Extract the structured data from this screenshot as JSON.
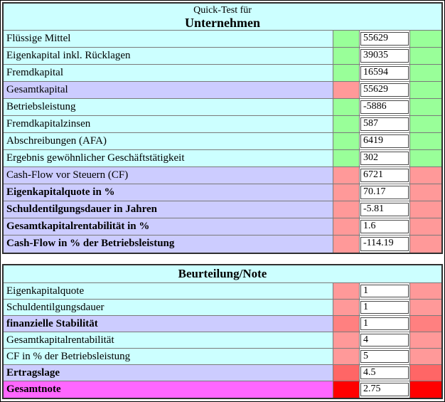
{
  "colors": {
    "header_bg": "#CCFFFF",
    "cyan": "#CCFFFF",
    "lavender": "#CCCCFF",
    "green": "#99FF99",
    "salmon": "#FF9999",
    "red_medium": "#FF8080",
    "red_dark": "#FF6666",
    "red_bright": "#FF0000",
    "magenta": "#FF66FF"
  },
  "quick_test_table": {
    "header_line1": "Quick-Test für",
    "header_line2": "Unternehmen",
    "rows": [
      {
        "label": "Flüssige Mittel",
        "value": "55629",
        "bold": false,
        "label_bg": "#CCFFFF",
        "left_bg": "#99FF99",
        "right_bg": "#99FF99"
      },
      {
        "label": "Eigenkapital inkl. Rücklagen",
        "value": "39035",
        "bold": false,
        "label_bg": "#CCFFFF",
        "left_bg": "#99FF99",
        "right_bg": "#99FF99"
      },
      {
        "label": "Fremdkapital",
        "value": "16594",
        "bold": false,
        "label_bg": "#CCFFFF",
        "left_bg": "#99FF99",
        "right_bg": "#99FF99"
      },
      {
        "label": "Gesamtkapital",
        "value": "55629",
        "bold": false,
        "label_bg": "#CCCCFF",
        "left_bg": "#FF9999",
        "right_bg": "#99FF99"
      },
      {
        "label": "Betriebsleistung",
        "value": "-5886",
        "bold": false,
        "label_bg": "#CCFFFF",
        "left_bg": "#99FF99",
        "right_bg": "#99FF99"
      },
      {
        "label": "Fremdkapitalzinsen",
        "value": "587",
        "bold": false,
        "label_bg": "#CCFFFF",
        "left_bg": "#99FF99",
        "right_bg": "#99FF99"
      },
      {
        "label": "Abschreibungen (AFA)",
        "value": "6419",
        "bold": false,
        "label_bg": "#CCFFFF",
        "left_bg": "#99FF99",
        "right_bg": "#99FF99"
      },
      {
        "label": "Ergebnis gewöhnlicher Geschäftstätigkeit",
        "value": "302",
        "bold": false,
        "label_bg": "#CCFFFF",
        "left_bg": "#99FF99",
        "right_bg": "#99FF99"
      },
      {
        "label": "Cash-Flow vor Steuern (CF)",
        "value": "6721",
        "bold": false,
        "label_bg": "#CCCCFF",
        "left_bg": "#FF9999",
        "right_bg": "#FF9999"
      },
      {
        "label": "Eigenkapitalquote in %",
        "value": "70.17",
        "bold": true,
        "label_bg": "#CCCCFF",
        "left_bg": "#FF9999",
        "right_bg": "#FF9999"
      },
      {
        "label": "Schuldentilgungsdauer in Jahren",
        "value": "-5.81",
        "bold": true,
        "label_bg": "#CCCCFF",
        "left_bg": "#FF9999",
        "right_bg": "#FF9999"
      },
      {
        "label": "Gesamtkapitalrentabilität in %",
        "value": "1.6",
        "bold": true,
        "label_bg": "#CCCCFF",
        "left_bg": "#FF9999",
        "right_bg": "#FF9999"
      },
      {
        "label": "Cash-Flow in % der Betriebsleistung",
        "value": "-114.19",
        "bold": true,
        "label_bg": "#CCCCFF",
        "left_bg": "#FF9999",
        "right_bg": "#FF9999"
      }
    ]
  },
  "rating_table": {
    "header": "Beurteilung/Note",
    "rows": [
      {
        "label": "Eigenkapitalquote",
        "value": "1",
        "bold": false,
        "label_bg": "#CCFFFF",
        "left_bg": "#FF9999",
        "right_bg": "#FF9999"
      },
      {
        "label": "Schuldentilgungsdauer",
        "value": "1",
        "bold": false,
        "label_bg": "#CCFFFF",
        "left_bg": "#FF9999",
        "right_bg": "#FF9999"
      },
      {
        "label": "finanzielle Stabilität",
        "value": "1",
        "bold": true,
        "label_bg": "#CCCCFF",
        "left_bg": "#FF8080",
        "right_bg": "#FF8080"
      },
      {
        "label": "Gesamtkapitalrentabilität",
        "value": "4",
        "bold": false,
        "label_bg": "#CCFFFF",
        "left_bg": "#FF9999",
        "right_bg": "#FF9999"
      },
      {
        "label": "CF in % der Betriebsleistung",
        "value": "5",
        "bold": false,
        "label_bg": "#CCFFFF",
        "left_bg": "#FF9999",
        "right_bg": "#FF9999"
      },
      {
        "label": "Ertragslage",
        "value": "4.5",
        "bold": true,
        "label_bg": "#CCCCFF",
        "left_bg": "#FF6666",
        "right_bg": "#FF6666"
      },
      {
        "label": "Gesamtnote",
        "value": "2.75",
        "bold": true,
        "label_bg": "#FF66FF",
        "left_bg": "#FF0000",
        "right_bg": "#FF0000"
      }
    ]
  }
}
